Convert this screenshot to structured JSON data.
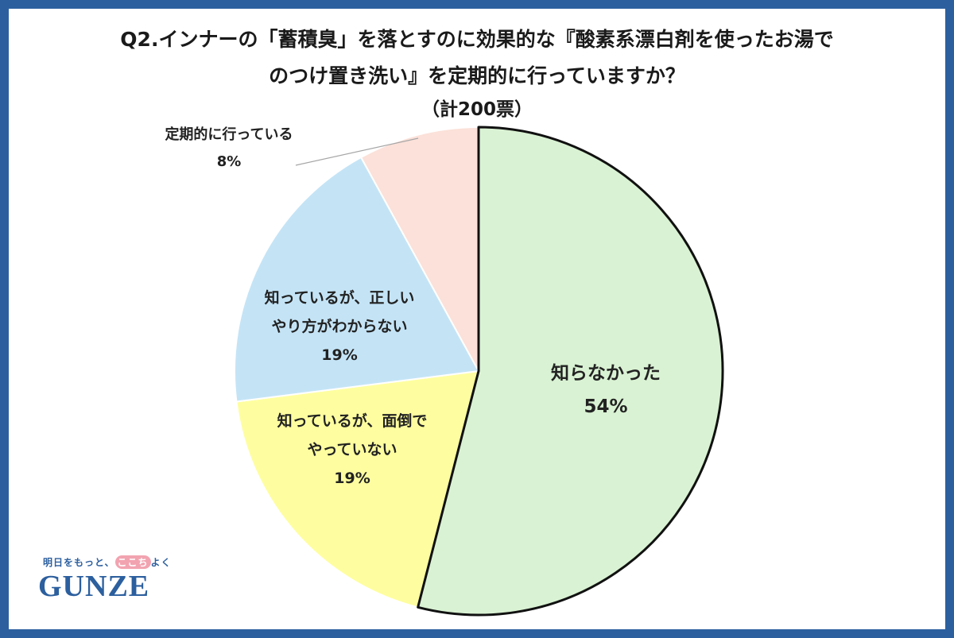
{
  "title": {
    "line1": "Q2.インナーの「蓄積臭」を落とすのに効果的な『酸素系漂白剤を使ったお湯で",
    "line2": "のつけ置き洗い』を定期的に行っていますか？",
    "total": "（計200票）"
  },
  "chart_data": {
    "type": "pie",
    "title": "Q2.インナーの「蓄積臭」を落とすのに効果的な『酸素系漂白剤を使ったお湯でのつけ置き洗い』を定期的に行っていますか？",
    "total_votes": 200,
    "start": "12 o'clock, clockwise",
    "slices": [
      {
        "label": [
          "知らなかった"
        ],
        "value": 54,
        "value_label": "54%",
        "color": "#d9f2d3",
        "highlighted": true
      },
      {
        "label": [
          "知っているが、面倒で",
          "やっていない"
        ],
        "value": 19,
        "value_label": "19%",
        "color": "#fefea0",
        "highlighted": false
      },
      {
        "label": [
          "知っているが、正しい",
          "やり方がわからない"
        ],
        "value": 19,
        "value_label": "19%",
        "color": "#c4e4f6",
        "highlighted": false
      },
      {
        "label": [
          "定期的に行っている"
        ],
        "value": 8,
        "value_label": "8%",
        "color": "#fbe1d9",
        "highlighted": false
      }
    ]
  },
  "logo": {
    "tagline_pre": "明日をもっと、",
    "tagline_hl": "ここち",
    "tagline_post": "よく",
    "wordmark": "GUNZE"
  },
  "colors": {
    "frame": "#2c5f9e",
    "outline": "#111111"
  }
}
